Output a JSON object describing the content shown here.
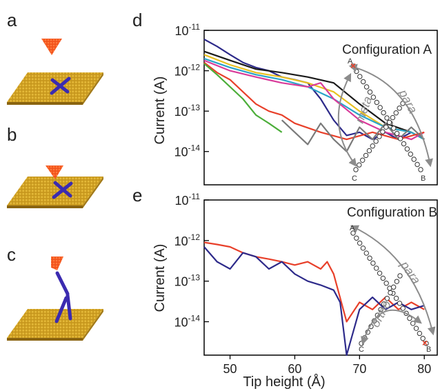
{
  "panels": {
    "a": "a",
    "b": "b",
    "c": "c",
    "d": "d",
    "e": "e"
  },
  "colors": {
    "surface": "#c8981e",
    "surface_dark": "#8a6410",
    "tip": "#f2541c",
    "molecule": "#3b2bb0",
    "arrow": "#8c8c8c",
    "marker": "#e8402a"
  },
  "chart_data": [
    {
      "type": "line",
      "panel": "d",
      "title": "Configuration A",
      "xlabel": "",
      "ylabel": "Current (A)",
      "yscale": "log",
      "xlim": [
        46,
        82
      ],
      "ylim": [
        1.5e-15,
        1e-11
      ],
      "y_tick_labels": [
        "10-11",
        "10-12",
        "10-13",
        "10-14"
      ],
      "inset_labels": {
        "A": "A",
        "B": "B",
        "C": "C",
        "meta": "meta",
        "para": "para"
      },
      "series": [
        {
          "color": "#2d2a8a",
          "x": [
            46,
            48,
            50,
            52,
            54,
            56,
            58,
            60,
            62,
            64,
            66,
            68,
            70,
            72,
            74,
            76,
            78,
            80
          ],
          "y": [
            6e-12,
            4e-12,
            2.5e-12,
            1.6e-12,
            1.2e-12,
            1e-12,
            7e-13,
            6e-13,
            5e-13,
            2e-13,
            6e-14,
            2.5e-14,
            3e-14,
            2e-14,
            3e-14,
            2e-14,
            3e-14,
            2e-14
          ]
        },
        {
          "color": "#1a1a1a",
          "x": [
            46,
            50,
            54,
            58,
            62,
            66,
            70,
            74,
            78,
            80
          ],
          "y": [
            3e-12,
            1.8e-12,
            1.1e-12,
            9e-13,
            7e-13,
            5e-13,
            1.5e-13,
            5e-14,
            3e-14,
            2e-14
          ]
        },
        {
          "color": "#e8c020",
          "x": [
            46,
            50,
            54,
            58,
            62,
            66,
            70,
            74,
            78,
            80
          ],
          "y": [
            2.5e-12,
            1.4e-12,
            9e-13,
            7e-13,
            5e-13,
            3e-13,
            1e-13,
            4e-14,
            3e-14,
            2e-14
          ]
        },
        {
          "color": "#2aa3c9",
          "x": [
            46,
            50,
            54,
            58,
            62,
            66,
            70,
            74,
            78,
            80
          ],
          "y": [
            2e-12,
            1.2e-12,
            8e-13,
            6e-13,
            4e-13,
            2e-13,
            8e-14,
            4e-14,
            3e-14,
            2e-14
          ]
        },
        {
          "color": "#d93b9a",
          "x": [
            46,
            50,
            54,
            58,
            62,
            64,
            66,
            70,
            74,
            78,
            80
          ],
          "y": [
            1.8e-12,
            1e-12,
            7e-13,
            5e-13,
            4e-13,
            5e-13,
            2e-13,
            6e-14,
            3e-14,
            2e-14,
            3e-14
          ]
        },
        {
          "color": "#e8402a",
          "x": [
            46,
            48,
            50,
            52,
            54,
            56,
            58,
            60,
            64,
            68,
            72,
            76,
            80
          ],
          "y": [
            1.6e-12,
            9e-13,
            6e-13,
            3e-13,
            1.5e-13,
            1e-13,
            8e-14,
            5e-14,
            3e-14,
            2e-14,
            3e-14,
            2e-14,
            3e-14
          ]
        },
        {
          "color": "#4cae3a",
          "x": [
            46,
            48,
            50,
            52,
            54,
            56,
            58
          ],
          "y": [
            1.5e-12,
            8e-13,
            4e-13,
            2e-13,
            8e-14,
            5e-14,
            3e-14
          ]
        },
        {
          "color": "#7a7a7a",
          "x": [
            58,
            60,
            62,
            64,
            66,
            68,
            70,
            72,
            74,
            76,
            78,
            80
          ],
          "y": [
            6e-14,
            3e-14,
            1.5e-14,
            5e-14,
            2e-14,
            1e-14,
            4e-14,
            2e-14,
            5e-14,
            2e-14,
            4e-14,
            2e-14
          ]
        }
      ]
    },
    {
      "type": "line",
      "panel": "e",
      "title": "Configuration B",
      "xlabel": "Tip height (Å)",
      "ylabel": "Current (A)",
      "yscale": "log",
      "xlim": [
        46,
        82
      ],
      "ylim": [
        1.5e-15,
        1e-11
      ],
      "x_ticks": [
        50,
        60,
        70,
        80
      ],
      "y_tick_labels": [
        "10-11",
        "10-12",
        "10-13",
        "10-14"
      ],
      "inset_labels": {
        "A": "A",
        "B": "B",
        "C": "C",
        "ortho": "ortho",
        "para": "para"
      },
      "series": [
        {
          "color": "#e8402a",
          "x": [
            46,
            48,
            50,
            52,
            54,
            56,
            58,
            60,
            62,
            64,
            65,
            66,
            68,
            70,
            72,
            74,
            76,
            78,
            80
          ],
          "y": [
            9e-13,
            8e-13,
            7e-13,
            5e-13,
            4e-13,
            3.5e-13,
            3e-13,
            2.5e-13,
            3e-13,
            2e-13,
            3e-13,
            1.5e-13,
            1e-14,
            3e-14,
            2e-14,
            4e-14,
            2e-14,
            3e-14,
            2e-14
          ]
        },
        {
          "color": "#2d2a8a",
          "x": [
            46,
            48,
            50,
            52,
            54,
            56,
            58,
            60,
            62,
            64,
            66,
            67,
            68,
            70,
            72,
            74,
            76,
            78,
            80
          ],
          "y": [
            7e-13,
            3e-13,
            2e-13,
            5e-13,
            4e-13,
            2e-13,
            3e-13,
            1.5e-13,
            1e-13,
            8e-14,
            6e-14,
            3e-14,
            1.5e-15,
            2e-14,
            4e-14,
            2e-14,
            3e-14,
            2e-14,
            2.5e-14
          ]
        }
      ]
    }
  ]
}
